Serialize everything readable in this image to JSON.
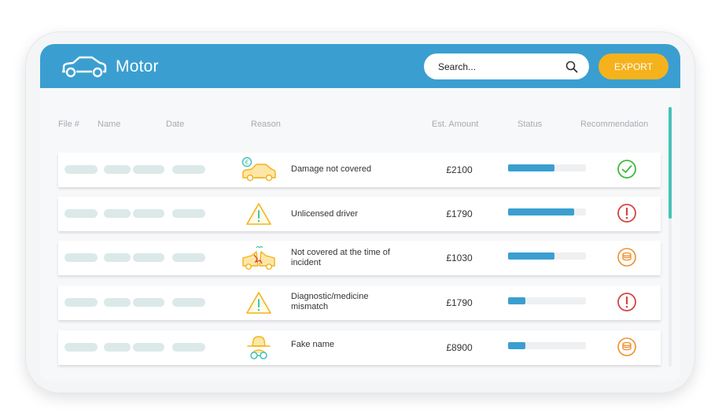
{
  "header": {
    "title": "Motor",
    "icon": "car-icon",
    "search": {
      "placeholder": "Search...",
      "value": ""
    },
    "export_label": "EXPORT"
  },
  "columns": {
    "file": "File #",
    "name": "Name",
    "date": "Date",
    "reason": "Reason",
    "amount": "Est. Amount",
    "status": "Status",
    "recommendation": "Recommendation"
  },
  "rows": [
    {
      "reason": "Damage not covered",
      "reason_icon": "car-euro-icon",
      "amount": "£2100",
      "status_progress": 0.6,
      "recommendation": "approve-check-icon"
    },
    {
      "reason": "Unlicensed driver",
      "reason_icon": "warning-triangle-icon",
      "amount": "£1790",
      "status_progress": 0.85,
      "recommendation": "alert-exclamation-icon"
    },
    {
      "reason": "Not covered at the time of incident",
      "reason_icon": "car-crash-icon",
      "amount": "£1030",
      "status_progress": 0.6,
      "recommendation": "coins-icon"
    },
    {
      "reason": "Diagnostic/medicine mismatch",
      "reason_icon": "warning-triangle-icon",
      "amount": "£1790",
      "status_progress": 0.22,
      "recommendation": "alert-exclamation-icon"
    },
    {
      "reason": "Fake name",
      "reason_icon": "incognito-icon",
      "amount": "£8900",
      "status_progress": 0.22,
      "recommendation": "coins-icon"
    }
  ],
  "colors": {
    "header": "#3a9fd0",
    "accent_orange": "#f5b21c",
    "status_bar": "#3a9fd0",
    "approve": "#3cba3c",
    "alert": "#d94141",
    "coins": "#ef8f2a",
    "reason_icon": "#f5b21c",
    "scrollbar": "#45c2b8"
  }
}
